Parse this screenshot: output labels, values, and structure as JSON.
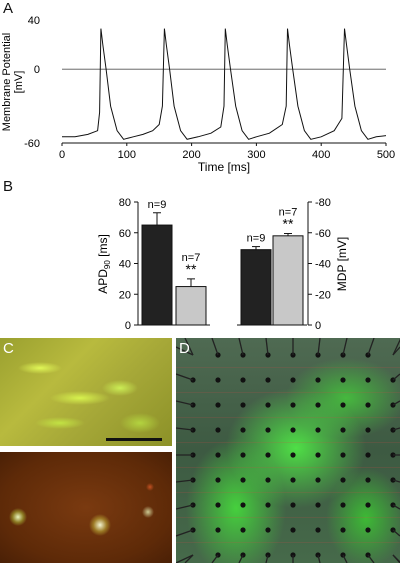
{
  "panels": {
    "a": "A",
    "b": "B",
    "c": "C",
    "d": "D"
  },
  "chart_data": [
    {
      "type": "line",
      "panel": "A",
      "xlabel": "Time [ms]",
      "ylabel": "Membrane Potential [mV]",
      "xlim": [
        0,
        500
      ],
      "ylim": [
        -60,
        40
      ],
      "xticks": [
        0,
        100,
        200,
        300,
        400,
        500
      ],
      "yticks": [
        40,
        0,
        -60
      ],
      "reference_line_y": 0,
      "series": [
        {
          "spike_peaks_ms": [
            60,
            158,
            252,
            348,
            436
          ],
          "x": [
            0,
            20,
            40,
            55,
            58,
            60,
            63,
            68,
            75,
            85,
            95,
            110,
            125,
            140,
            150,
            155,
            158,
            161,
            166,
            173,
            183,
            193,
            210,
            230,
            245,
            250,
            252,
            255,
            260,
            268,
            278,
            288,
            300,
            320,
            340,
            346,
            348,
            351,
            356,
            364,
            374,
            384,
            400,
            420,
            432,
            436,
            439,
            444,
            452,
            462,
            472,
            485,
            500
          ],
          "y": [
            -55,
            -55,
            -53,
            -50,
            -35,
            33,
            20,
            0,
            -30,
            -50,
            -57,
            -55,
            -53,
            -50,
            -45,
            -30,
            33,
            20,
            0,
            -30,
            -50,
            -57,
            -55,
            -52,
            -47,
            -30,
            33,
            20,
            0,
            -30,
            -50,
            -57,
            -55,
            -52,
            -45,
            -30,
            33,
            20,
            0,
            -30,
            -50,
            -57,
            -55,
            -50,
            -40,
            33,
            20,
            0,
            -30,
            -50,
            -57,
            -55,
            -54
          ]
        }
      ]
    },
    {
      "type": "bar",
      "panel": "B-left",
      "ylabel": "APD90 [ms]",
      "ylabel_main": "APD",
      "ylabel_sub": "90",
      "ylabel_unit": " [ms]",
      "ylim": [
        0,
        80
      ],
      "yticks": [
        0,
        20,
        40,
        60,
        80
      ],
      "values": [
        65,
        25
      ],
      "errors": [
        8,
        5
      ],
      "colors": [
        "#222222",
        "#c8c8c8"
      ],
      "n_labels": [
        "n=9",
        "n=7"
      ],
      "significance": [
        "",
        "**"
      ]
    },
    {
      "type": "bar",
      "panel": "B-right",
      "ylabel": "MDP [mV]",
      "ylim": [
        0,
        -80
      ],
      "yticks": [
        0,
        -20,
        -40,
        -60,
        -80
      ],
      "values": [
        -49,
        -58
      ],
      "errors": [
        2,
        1.5
      ],
      "colors": [
        "#222222",
        "#c8c8c8"
      ],
      "n_labels": [
        "n=9",
        "n=7"
      ],
      "significance": [
        "",
        "**"
      ]
    }
  ],
  "images": {
    "c_top": "phase-contrast-green-fluorescence-micrograph",
    "c_bottom": "fluorescence-micrograph-dark",
    "d": "microelectrode-array-with-green-cells"
  }
}
